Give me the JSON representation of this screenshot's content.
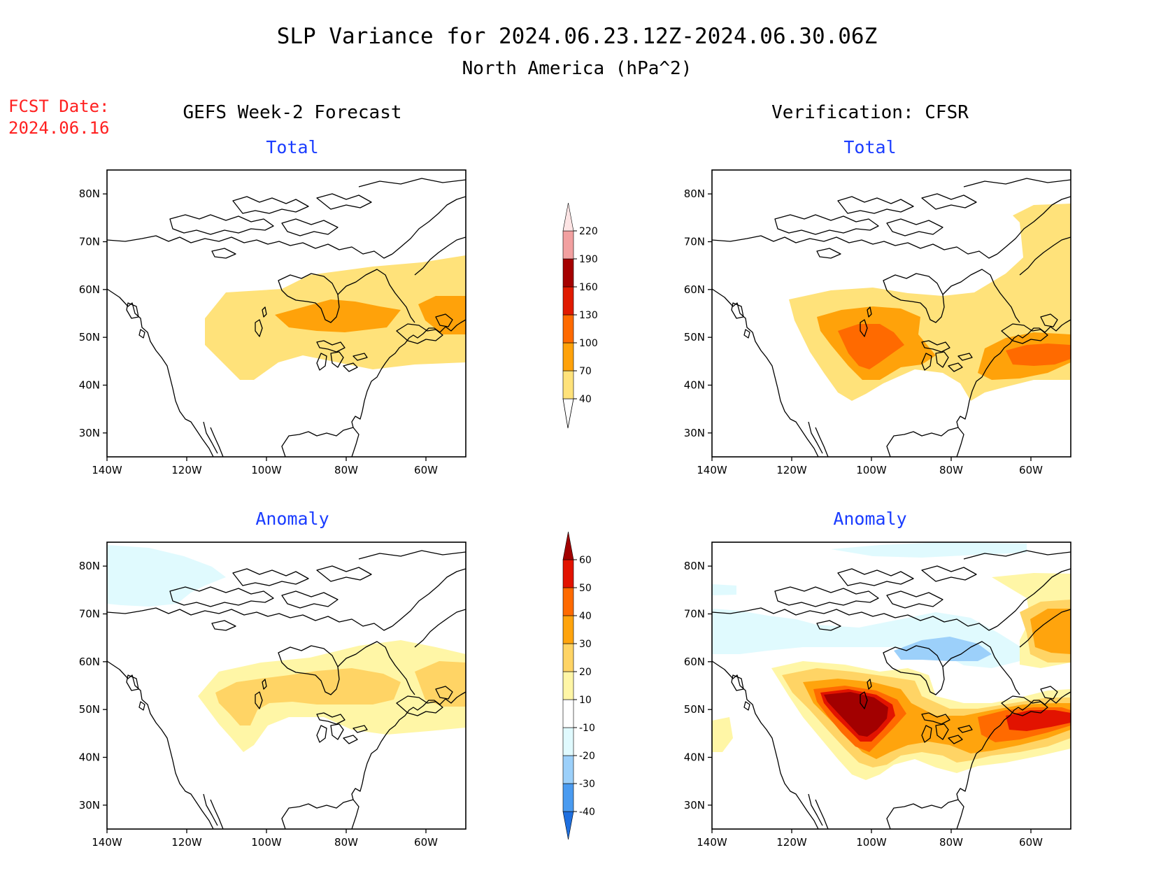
{
  "title": "SLP Variance for 2024.06.23.12Z-2024.06.30.06Z",
  "subtitle": "North America (hPa^2)",
  "fcst_date_label": "FCST Date:",
  "fcst_date_value": "2024.06.16",
  "columns": {
    "left": "GEFS Week-2 Forecast",
    "right": "Verification: CFSR"
  },
  "panel_titles": {
    "top_left": "Total",
    "top_right": "Total",
    "bottom_left": "Anomaly",
    "bottom_right": "Anomaly"
  },
  "axes": {
    "x_ticks": [
      "140W",
      "120W",
      "100W",
      "80W",
      "60W"
    ],
    "y_ticks": [
      "80N",
      "70N",
      "60N",
      "50N",
      "40N",
      "30N"
    ],
    "lon_range": [
      -140,
      -50
    ],
    "lat_range": [
      25,
      85
    ]
  },
  "total_colorbar": {
    "labels": [
      "40",
      "70",
      "100",
      "130",
      "160",
      "190",
      "220"
    ],
    "colors": [
      "#ffe27a",
      "#ffa20a",
      "#ff6a00",
      "#e01a00",
      "#a50000",
      "#f2a0a0",
      "#fde4e4"
    ]
  },
  "anomaly_colorbar": {
    "labels": [
      "-40",
      "-30",
      "-20",
      "-10",
      "10",
      "20",
      "30",
      "40",
      "50",
      "60"
    ],
    "colors": [
      "#1e6fdf",
      "#4a9bf0",
      "#9cd0fa",
      "#e0fafe",
      "#ffffff",
      "#fff6a6",
      "#ffd465",
      "#ffa40d",
      "#ff6a00",
      "#e21300",
      "#a20000"
    ]
  }
}
